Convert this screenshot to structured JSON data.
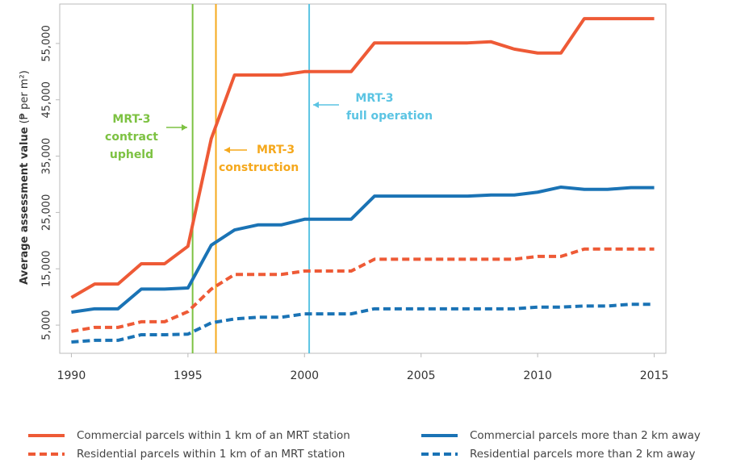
{
  "chart_data": {
    "type": "line",
    "ylabel": "Average assessment value",
    "ylabel_unit": "(₱ per m²)",
    "x": [
      1990,
      1991,
      1992,
      1993,
      1994,
      1995,
      1996,
      1997,
      1998,
      1999,
      2000,
      2001,
      2002,
      2003,
      2004,
      2005,
      2006,
      2007,
      2008,
      2009,
      2010,
      2011,
      2012,
      2013,
      2014,
      2015
    ],
    "xlim": [
      1989.5,
      2015.5
    ],
    "xticks": [
      1990,
      1995,
      2000,
      2005,
      2010,
      2015
    ],
    "ylim": [
      0,
      62000
    ],
    "yticks": [
      {
        "value": 5000,
        "label": "5,000"
      },
      {
        "value": 15000,
        "label": "15,000"
      },
      {
        "value": 25000,
        "label": "25,000"
      },
      {
        "value": 35000,
        "label": "35,000"
      },
      {
        "value": 45000,
        "label": "45,000"
      },
      {
        "value": 55000,
        "label": "55,000"
      }
    ],
    "series": [
      {
        "name": "Commercial parcels within 1 km of an MRT station",
        "color": "#ee5a36",
        "dashed": false,
        "values": [
          9900,
          12300,
          12300,
          15900,
          15900,
          19000,
          38100,
          49400,
          49400,
          49400,
          50000,
          50000,
          50000,
          55100,
          55100,
          55100,
          55100,
          55100,
          55300,
          54000,
          53300,
          53300,
          59400,
          59400,
          59400,
          59400
        ]
      },
      {
        "name": "Commercial parcels more than 2 km away",
        "color": "#1a73b5",
        "dashed": false,
        "values": [
          7300,
          7900,
          7900,
          11400,
          11400,
          11600,
          19200,
          21900,
          22800,
          22800,
          23800,
          23800,
          23800,
          27900,
          27900,
          27900,
          27900,
          27900,
          28100,
          28100,
          28600,
          29500,
          29100,
          29100,
          29400,
          29400
        ]
      },
      {
        "name": "Residential parcels within 1 km of an MRT station",
        "color": "#ee5a36",
        "dashed": true,
        "values": [
          3900,
          4600,
          4600,
          5600,
          5600,
          7400,
          11400,
          14000,
          14000,
          14000,
          14600,
          14600,
          14600,
          16700,
          16700,
          16700,
          16700,
          16700,
          16700,
          16700,
          17200,
          17200,
          18500,
          18500,
          18500,
          18500
        ]
      },
      {
        "name": "Residential parcels more than 2 km away",
        "color": "#1a73b5",
        "dashed": true,
        "values": [
          2000,
          2300,
          2300,
          3300,
          3300,
          3400,
          5400,
          6100,
          6400,
          6400,
          7000,
          7000,
          7000,
          7900,
          7900,
          7900,
          7900,
          7900,
          7900,
          7900,
          8200,
          8200,
          8400,
          8400,
          8700,
          8700
        ]
      }
    ],
    "events": [
      {
        "x": 1995.2,
        "color": "#7dc242",
        "side": "left",
        "text": [
          "MRT-3",
          "contract",
          "upheld"
        ]
      },
      {
        "x": 1996.2,
        "color": "#f5a81c",
        "side": "right",
        "text": [
          "MRT-3",
          "construction"
        ]
      },
      {
        "x": 2000.2,
        "color": "#5bc4e3",
        "side": "right",
        "text": [
          "MRT-3",
          "full operation"
        ]
      }
    ]
  }
}
